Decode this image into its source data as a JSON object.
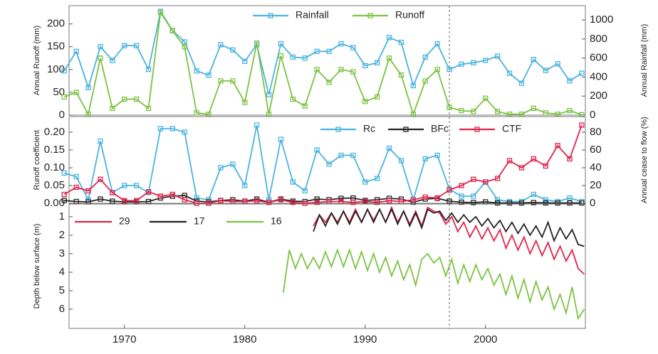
{
  "chart_data": [
    {
      "type": "line",
      "ylabel": "Annual Runoff (mm)",
      "y2label": "Annual Rainfall (mm)",
      "xlim": [
        1965.4,
        2008.3
      ],
      "ylim": [
        0,
        240
      ],
      "yticks": [
        0,
        50,
        100,
        150,
        200
      ],
      "y2lim": [
        0,
        1150
      ],
      "y2ticks": [
        0,
        200,
        400,
        600,
        800,
        1000
      ],
      "markers": true,
      "reference_line_x": 1997,
      "x": [
        1965,
        1966,
        1967,
        1968,
        1969,
        1970,
        1971,
        1972,
        1973,
        1974,
        1975,
        1976,
        1977,
        1978,
        1979,
        1980,
        1981,
        1982,
        1983,
        1984,
        1985,
        1986,
        1987,
        1988,
        1989,
        1990,
        1991,
        1992,
        1993,
        1994,
        1995,
        1996,
        1997,
        1998,
        1999,
        2000,
        2001,
        2002,
        2003,
        2004,
        2005,
        2006,
        2007,
        2008
      ],
      "series": [
        {
          "name": "Rainfall",
          "color": "#4bb3e0",
          "axis": "y2",
          "values": [
            465,
            670,
            290,
            720,
            575,
            730,
            730,
            480,
            1090,
            890,
            770,
            465,
            420,
            740,
            685,
            565,
            740,
            215,
            750,
            610,
            600,
            670,
            670,
            750,
            710,
            520,
            550,
            815,
            765,
            310,
            610,
            750,
            480,
            535,
            550,
            575,
            620,
            440,
            335,
            585,
            470,
            540,
            360,
            440
          ]
        },
        {
          "name": "Runoff",
          "color": "#7cc242",
          "values": [
            40,
            50,
            2,
            125,
            15,
            35,
            35,
            15,
            225,
            185,
            150,
            5,
            2,
            75,
            75,
            28,
            158,
            2,
            130,
            35,
            20,
            100,
            72,
            100,
            95,
            30,
            40,
            125,
            88,
            2,
            75,
            100,
            17,
            10,
            8,
            37,
            8,
            2,
            2,
            15,
            5,
            2,
            10,
            1
          ]
        }
      ]
    },
    {
      "type": "line",
      "ylabel": "Runoff coefficient",
      "y2label": "Annual cease to flow (%)",
      "xlim": [
        1965.4,
        2008.3
      ],
      "ylim": [
        0,
        0.244
      ],
      "yticks": [
        {
          "value": 0,
          "label": "0.00"
        },
        {
          "value": 0.05,
          "label": "0.05"
        },
        {
          "value": 0.1,
          "label": "0.10"
        },
        {
          "value": 0.15,
          "label": "0.15"
        },
        {
          "value": 0.2,
          "label": "0.20"
        }
      ],
      "y2lim": [
        0,
        97.6
      ],
      "y2ticks": [
        0,
        20,
        40,
        60,
        80
      ],
      "markers": true,
      "reference_line_x": 1997,
      "x": [
        1965,
        1966,
        1967,
        1968,
        1969,
        1970,
        1971,
        1972,
        1973,
        1974,
        1975,
        1976,
        1977,
        1978,
        1979,
        1980,
        1981,
        1982,
        1983,
        1984,
        1985,
        1986,
        1987,
        1988,
        1989,
        1990,
        1991,
        1992,
        1993,
        1994,
        1995,
        1996,
        1997,
        1998,
        1999,
        2000,
        2001,
        2002,
        2003,
        2004,
        2005,
        2006,
        2007,
        2008
      ],
      "series": [
        {
          "name": "Rc",
          "color": "#4bb3e0",
          "values": [
            0.085,
            0.075,
            0.01,
            0.175,
            0.03,
            0.05,
            0.05,
            0.03,
            0.21,
            0.21,
            0.2,
            0.015,
            0.01,
            0.1,
            0.11,
            0.05,
            0.22,
            0.01,
            0.18,
            0.06,
            0.035,
            0.15,
            0.11,
            0.135,
            0.135,
            0.06,
            0.07,
            0.155,
            0.12,
            0.01,
            0.125,
            0.135,
            0.04,
            0.02,
            0.02,
            0.06,
            0.01,
            0.005,
            0.005,
            0.025,
            0.01,
            0.005,
            0.015,
            0.005
          ]
        },
        {
          "name": "BFc",
          "color": "#222222",
          "values": [
            0.008,
            0.005,
            0.004,
            0.012,
            0.006,
            0.004,
            0.004,
            0.005,
            0.015,
            0.02,
            0.022,
            0.006,
            0.004,
            0.008,
            0.01,
            0.006,
            0.012,
            0.003,
            0.012,
            0.006,
            0.005,
            0.012,
            0.01,
            0.014,
            0.015,
            0.008,
            0.01,
            0.014,
            0.012,
            0.003,
            0.012,
            0.014,
            0.006,
            0.003,
            0.002,
            0.004,
            0.001,
            0.001,
            0.001,
            0.002,
            0.001,
            0.001,
            0.001,
            0.001
          ]
        },
        {
          "name": "CTF",
          "color": "#e0234a",
          "axis": "y2",
          "values": [
            10,
            18,
            14,
            27,
            12,
            3,
            3,
            13,
            8,
            10,
            4,
            0,
            0,
            3,
            2,
            2,
            3,
            1,
            4,
            1,
            0,
            1,
            2,
            2,
            1,
            2,
            1,
            3,
            2,
            4,
            7,
            6,
            15,
            20,
            27,
            24,
            28,
            48,
            40,
            50,
            42,
            65,
            50,
            88
          ]
        }
      ]
    },
    {
      "type": "line",
      "ylabel": "Depth below surface (m)",
      "y_inverted": true,
      "reference_line_x": 1997,
      "xlim": [
        1965.4,
        2008.3
      ],
      "xticks": [
        1970,
        1980,
        1990,
        2000
      ],
      "ylim": [
        0.31,
        7.04
      ],
      "yticks": [
        1,
        2,
        3,
        4,
        5,
        6
      ],
      "x": [
        1983.2,
        1983.7,
        1984.2,
        1984.7,
        1985.2,
        1985.7,
        1986.2,
        1986.7,
        1987.2,
        1987.7,
        1988.2,
        1988.7,
        1989.2,
        1989.7,
        1990.2,
        1990.7,
        1991.2,
        1991.7,
        1992.2,
        1992.7,
        1993.2,
        1993.7,
        1994.2,
        1994.7,
        1995.2,
        1995.7,
        1996.2,
        1996.7,
        1997.2,
        1997.7,
        1998.2,
        1998.7,
        1999.2,
        1999.7,
        2000.2,
        2000.7,
        2001.2,
        2001.7,
        2002.2,
        2002.7,
        2003.2,
        2003.7,
        2004.2,
        2004.7,
        2005.2,
        2005.7,
        2006.2,
        2006.7,
        2007.2,
        2007.7,
        2008.2
      ],
      "series": [
        {
          "name": "29",
          "color": "#e0234a",
          "values": [
            null,
            null,
            null,
            null,
            null,
            1.5,
            0.9,
            1.3,
            0.8,
            1.3,
            0.7,
            1.3,
            0.6,
            1.3,
            0.6,
            1.2,
            0.6,
            1.3,
            0.5,
            1.3,
            0.7,
            1.4,
            0.7,
            1.5,
            0.5,
            0.7,
            0.8,
            1.4,
            1.0,
            1.8,
            1.3,
            2.1,
            1.5,
            2.2,
            1.6,
            2.3,
            1.7,
            2.7,
            2.0,
            2.8,
            2.1,
            3.0,
            2.3,
            3.1,
            2.4,
            3.3,
            2.6,
            3.4,
            2.8,
            3.8,
            4.1
          ]
        },
        {
          "name": "17",
          "color": "#222222",
          "values": [
            null,
            null,
            null,
            null,
            null,
            1.8,
            0.9,
            1.5,
            0.8,
            1.4,
            0.7,
            1.4,
            0.7,
            1.3,
            0.6,
            1.3,
            0.6,
            1.3,
            0.6,
            1.4,
            0.7,
            1.5,
            0.8,
            1.6,
            0.6,
            0.8,
            0.7,
            1.2,
            0.8,
            1.3,
            0.9,
            1.3,
            1.0,
            1.5,
            1.1,
            1.6,
            1.2,
            1.8,
            1.3,
            1.9,
            1.4,
            2.0,
            1.5,
            2.1,
            1.3,
            2.3,
            1.6,
            2.2,
            1.7,
            2.5,
            2.6
          ]
        },
        {
          "name": "16",
          "color": "#7cc242",
          "values": [
            5.1,
            2.8,
            3.8,
            3.0,
            3.8,
            3.2,
            3.8,
            2.9,
            3.7,
            2.8,
            3.7,
            2.8,
            3.8,
            2.9,
            3.9,
            3.0,
            4.0,
            3.2,
            4.2,
            3.4,
            4.4,
            3.6,
            4.7,
            3.3,
            3.0,
            3.5,
            3.2,
            4.2,
            3.3,
            4.6,
            3.6,
            4.5,
            3.6,
            4.4,
            3.8,
            4.7,
            4.1,
            5.2,
            4.2,
            5.4,
            4.4,
            5.6,
            4.5,
            5.5,
            4.8,
            6.0,
            5.2,
            6.2,
            4.8,
            6.5,
            6.0
          ]
        }
      ]
    }
  ]
}
